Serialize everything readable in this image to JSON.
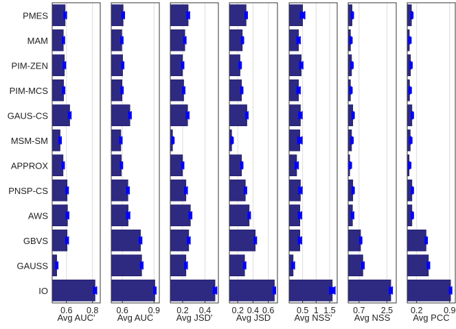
{
  "chart_data": {
    "type": "bar",
    "orientation": "horizontal",
    "categories": [
      "PMES",
      "MAM",
      "PIM-ZEN",
      "PIM-MCS",
      "GAUS-CS",
      "MSM-SM",
      "APPROX",
      "PNSP-CS",
      "AWS",
      "GBVS",
      "GAUSS",
      "IO"
    ],
    "colors": {
      "bar": "#2e2a82",
      "error": "#0000ff",
      "grid": "#dcdcdc",
      "frame": "#333333"
    },
    "grid": true,
    "panels": [
      {
        "xlabel": "Avg AUC'",
        "xlim": [
          0.49,
          0.86
        ],
        "ticks": [
          0.6,
          0.8
        ],
        "tick_labels": [
          "0.6",
          "0.8"
        ],
        "values": [
          0.59,
          0.576,
          0.584,
          0.578,
          0.625,
          0.551,
          0.574,
          0.605,
          0.608,
          0.605,
          0.525,
          0.82
        ],
        "errors": [
          0.01,
          0.008,
          0.009,
          0.008,
          0.01,
          0.008,
          0.008,
          0.009,
          0.01,
          0.01,
          0.008,
          0.012
        ]
      },
      {
        "xlabel": "Avg AUC",
        "xlim": [
          0.495,
          0.95
        ],
        "ticks": [
          0.6,
          0.9
        ],
        "tick_labels": [
          "0.6",
          "0.9"
        ],
        "values": [
          0.608,
          0.595,
          0.603,
          0.597,
          0.672,
          0.586,
          0.591,
          0.653,
          0.655,
          0.772,
          0.783,
          0.908
        ],
        "errors": [
          0.012,
          0.01,
          0.01,
          0.01,
          0.012,
          0.01,
          0.01,
          0.012,
          0.015,
          0.012,
          0.012,
          0.01
        ]
      },
      {
        "xlabel": "Avg JSD'",
        "xlim": [
          0.09,
          0.52
        ],
        "ticks": [
          0.2,
          0.4
        ],
        "tick_labels": [
          "0.2",
          "0.4"
        ],
        "values": [
          0.25,
          0.22,
          0.2,
          0.21,
          0.245,
          0.11,
          0.2,
          0.23,
          0.27,
          0.255,
          0.23,
          0.49
        ],
        "errors": [
          0.012,
          0.01,
          0.01,
          0.01,
          0.012,
          0.006,
          0.01,
          0.012,
          0.012,
          0.012,
          0.012,
          0.015
        ]
      },
      {
        "xlabel": "Avg JSD",
        "xlim": [
          0.09,
          0.72
        ],
        "ticks": [
          0.2,
          0.4,
          0.6
        ],
        "tick_labels": [
          "0.2",
          "0.4",
          "0.6"
        ],
        "values": [
          0.31,
          0.26,
          0.23,
          0.25,
          0.32,
          0.12,
          0.25,
          0.3,
          0.35,
          0.43,
          0.29,
          0.68
        ],
        "errors": [
          0.015,
          0.012,
          0.012,
          0.012,
          0.015,
          0.008,
          0.012,
          0.015,
          0.015,
          0.015,
          0.015,
          0.015
        ]
      },
      {
        "xlabel": "Avg NSS'",
        "xlim": [
          0.0,
          1.78
        ],
        "ticks": [
          0.5,
          1.0,
          1.5
        ],
        "tick_labels": [
          "0.5",
          "1",
          "1.5"
        ],
        "values": [
          0.5,
          0.35,
          0.45,
          0.35,
          0.42,
          0.4,
          0.28,
          0.42,
          0.4,
          0.4,
          0.15,
          1.6
        ],
        "errors": [
          0.08,
          0.06,
          0.06,
          0.06,
          0.06,
          0.08,
          0.06,
          0.06,
          0.06,
          0.06,
          0.05,
          0.1
        ]
      },
      {
        "xlabel": "Avg NSS",
        "xlim": [
          0.0,
          3.1
        ],
        "ticks": [
          0.7,
          2.5
        ],
        "tick_labels": [
          "0.7",
          "2.5"
        ],
        "values": [
          0.25,
          0.15,
          0.22,
          0.15,
          0.3,
          0.22,
          0.1,
          0.3,
          0.28,
          0.8,
          0.95,
          2.75
        ],
        "errors": [
          0.05,
          0.04,
          0.04,
          0.04,
          0.05,
          0.04,
          0.03,
          0.05,
          0.08,
          0.06,
          0.08,
          0.1
        ]
      },
      {
        "xlabel": "Avg PCC",
        "xlim": [
          0.0,
          1.02
        ],
        "ticks": [
          0.2,
          0.9
        ],
        "tick_labels": [
          "0.2",
          "0.9"
        ],
        "values": [
          0.09,
          0.045,
          0.07,
          0.05,
          0.1,
          0.065,
          0.04,
          0.1,
          0.1,
          0.4,
          0.45,
          0.92
        ],
        "errors": [
          0.015,
          0.01,
          0.012,
          0.01,
          0.015,
          0.012,
          0.01,
          0.015,
          0.015,
          0.02,
          0.025,
          0.025
        ]
      }
    ]
  }
}
